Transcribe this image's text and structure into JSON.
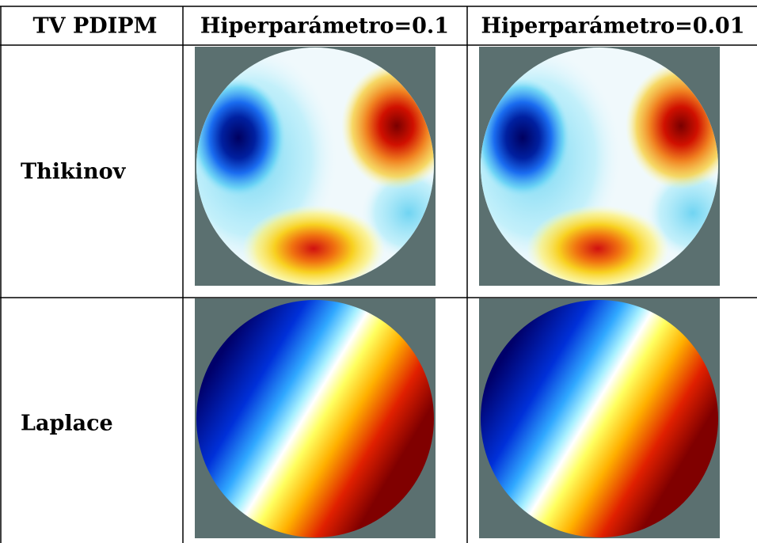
{
  "table": {
    "header": [
      "TV PDIPM",
      "Hiperparámetro=0.1",
      "Hiperparámetro=0.01"
    ],
    "rows": [
      [
        "Thikinov"
      ],
      [
        "Laplace"
      ]
    ]
  }
}
